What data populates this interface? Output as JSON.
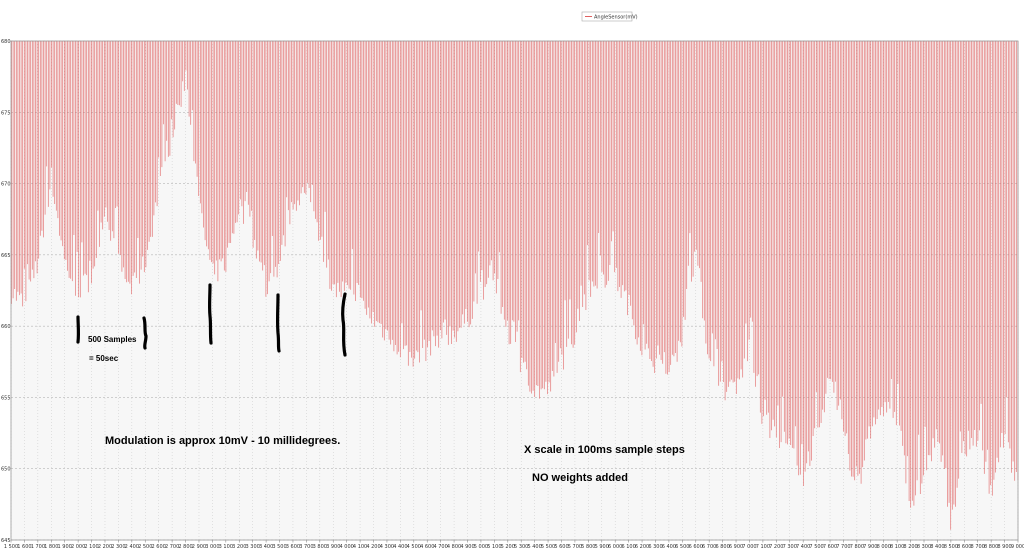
{
  "chart_data": {
    "type": "line",
    "legend": {
      "entries": [
        "AngleSensor(mV)"
      ],
      "placement": "top-center"
    },
    "title": "",
    "xlabel": "",
    "ylabel": "",
    "xlim": [
      1500,
      9000
    ],
    "ylim": [
      645,
      680
    ],
    "grid": true,
    "series_color": "#e06060",
    "x_ticks": [
      1500,
      1600,
      1700,
      1800,
      1900,
      2000,
      2100,
      2200,
      2300,
      2400,
      2500,
      2600,
      2700,
      2800,
      2900,
      3000,
      3100,
      3200,
      3300,
      3400,
      3500,
      3600,
      3700,
      3800,
      3900,
      4000,
      4100,
      4200,
      4300,
      4400,
      4500,
      4600,
      4700,
      4800,
      4900,
      5000,
      5100,
      5200,
      5300,
      5400,
      5500,
      5600,
      5700,
      5800,
      5900,
      6000,
      6100,
      6200,
      6300,
      6400,
      6500,
      6600,
      6700,
      6800,
      6900,
      7000,
      7100,
      7200,
      7300,
      7400,
      7500,
      7600,
      7700,
      7800,
      7900,
      8000,
      8100,
      8200,
      8300,
      8400,
      8500,
      8600,
      8700,
      8800,
      8900,
      9000
    ],
    "x_tick_labels": [
      "1 500",
      "1 600",
      "1 700",
      "1 800",
      "1 900",
      "2 000",
      "2 100",
      "2 200",
      "2 300",
      "2 400",
      "2 500",
      "2 600",
      "2 700",
      "2 800",
      "2 900",
      "3 000",
      "3 100",
      "3 200",
      "3 300",
      "3 400",
      "3 500",
      "3 600",
      "3 700",
      "3 800",
      "3 900",
      "4 000",
      "4 100",
      "4 200",
      "4 300",
      "4 400",
      "4 500",
      "4 600",
      "4 700",
      "4 800",
      "4 900",
      "5 000",
      "5 100",
      "5 200",
      "5 300",
      "5 400",
      "5 500",
      "5 600",
      "5 700",
      "5 800",
      "5 900",
      "6 000",
      "6 100",
      "6 200",
      "6 300",
      "6 400",
      "6 500",
      "6 600",
      "6 700",
      "6 800",
      "6 900",
      "7 000",
      "7 100",
      "7 200",
      "7 300",
      "7 400",
      "7 500",
      "7 600",
      "7 700",
      "7 800",
      "7 900",
      "8 000",
      "8 100",
      "8 200",
      "8 300",
      "8 400",
      "8 500",
      "8 600",
      "8 700",
      "8 800",
      "8 900",
      "9 000"
    ],
    "y_ticks": [
      645,
      650,
      655,
      660,
      665,
      670,
      675,
      680
    ],
    "y_tick_labels": [
      "645",
      "650",
      "655",
      "660",
      "665",
      "670",
      "675",
      "680"
    ],
    "upper_value": 680,
    "series_low_envelope": {
      "name": "AngleSensor(mV)",
      "x": [
        1500,
        1600,
        1700,
        1800,
        1900,
        2000,
        2100,
        2200,
        2300,
        2400,
        2500,
        2600,
        2700,
        2800,
        2900,
        3000,
        3100,
        3200,
        3300,
        3400,
        3500,
        3600,
        3700,
        3800,
        3900,
        4000,
        4100,
        4200,
        4300,
        4400,
        4500,
        4600,
        4700,
        4800,
        4900,
        5000,
        5100,
        5200,
        5300,
        5400,
        5500,
        5600,
        5700,
        5800,
        5900,
        6000,
        6100,
        6200,
        6300,
        6400,
        6500,
        6600,
        6700,
        6800,
        6900,
        7000,
        7100,
        7200,
        7300,
        7400,
        7500,
        7600,
        7700,
        7800,
        7900,
        8000,
        8100,
        8200,
        8300,
        8400,
        8500,
        8600,
        8700,
        8800,
        8900,
        9000
      ],
      "values": [
        662,
        661,
        664,
        670,
        664,
        662,
        663,
        668,
        664,
        662,
        664,
        669,
        673,
        677,
        668,
        663,
        664,
        668,
        666,
        662,
        664,
        668,
        669,
        666,
        662,
        662,
        661,
        660,
        659,
        658,
        657,
        658,
        659,
        659,
        660,
        662,
        663,
        659,
        657,
        655,
        655,
        657,
        659,
        662,
        663,
        663,
        661,
        658,
        657,
        656,
        659,
        665,
        657,
        655,
        655,
        658,
        653,
        652,
        651,
        649,
        652,
        656,
        652,
        648,
        652,
        654,
        653,
        647,
        649,
        652,
        646,
        651,
        652,
        648,
        652,
        648
      ]
    },
    "annotations": {
      "samples_label": "500 Samples",
      "time_label": "= 50sec",
      "modulation_label": "Modulation is approx 10mV - 10 millidegrees.",
      "xscale_label": "X scale in 100ms sample steps",
      "weights_label": "NO weights added"
    }
  }
}
